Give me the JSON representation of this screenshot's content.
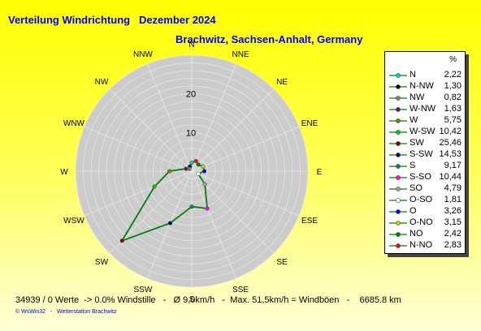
{
  "header": {
    "title": "Verteilung Windrichtung   Dezember 2024",
    "subtitle": "Brachwitz, Sachsen-Anhalt, Germany"
  },
  "legend": {
    "unit": "%"
  },
  "chart_data": {
    "type": "radar",
    "title": "Verteilung Windrichtung   Dezember 2024",
    "subtitle": "Brachwitz, Sachsen-Anhalt, Germany",
    "directions": [
      "N",
      "NNE",
      "NE",
      "ENE",
      "E",
      "ESE",
      "SE",
      "SSE",
      "S",
      "SSW",
      "SW",
      "WSW",
      "W",
      "WNW",
      "NW",
      "NNW"
    ],
    "ring_labels": [
      10,
      20
    ],
    "rmax": 30,
    "line_color": "#008000",
    "area_color": "#cccccc",
    "series": [
      {
        "label": "N",
        "dir": "N",
        "value": 2.22,
        "color": "#00cccc"
      },
      {
        "label": "N-NW",
        "dir": "NNW",
        "value": 1.3,
        "color": "#000000"
      },
      {
        "label": "NW",
        "dir": "NW",
        "value": 0.82,
        "color": "#808080"
      },
      {
        "label": "W-NW",
        "dir": "WNW",
        "value": 1.63,
        "color": "#800080"
      },
      {
        "label": "W",
        "dir": "W",
        "value": 5.75,
        "color": "#808000"
      },
      {
        "label": "W-SW",
        "dir": "WSW",
        "value": 10.42,
        "color": "#00cc00"
      },
      {
        "label": "SW",
        "dir": "SW",
        "value": 25.46,
        "color": "#800000"
      },
      {
        "label": "S-SW",
        "dir": "SSW",
        "value": 14.53,
        "color": "#000080"
      },
      {
        "label": "S",
        "dir": "S",
        "value": 9.17,
        "color": "#008080"
      },
      {
        "label": "S-SO",
        "dir": "SSE",
        "value": 10.44,
        "color": "#ff00ff"
      },
      {
        "label": "SO",
        "dir": "SE",
        "value": 4.79,
        "color": "#a0a0a0"
      },
      {
        "label": "O-SO",
        "dir": "ESE",
        "value": 1.81,
        "color": "#ffffff"
      },
      {
        "label": "O",
        "dir": "E",
        "value": 3.26,
        "color": "#0000ff"
      },
      {
        "label": "O-NO",
        "dir": "ENE",
        "value": 3.15,
        "color": "#cccc00"
      },
      {
        "label": "NO",
        "dir": "NE",
        "value": 2.42,
        "color": "#008000"
      },
      {
        "label": "N-NO",
        "dir": "NNE",
        "value": 2.83,
        "color": "#ff0000"
      }
    ]
  },
  "footer": {
    "stats": "34939 / 0 Werte  -> 0.0% Windstille   -   Ø 9,0km/h   -  Max. 51,5km/h = Windböen   -    6685.8 km",
    "copyright": "© WsWin32   -   Wetterstation Brachwitz"
  }
}
